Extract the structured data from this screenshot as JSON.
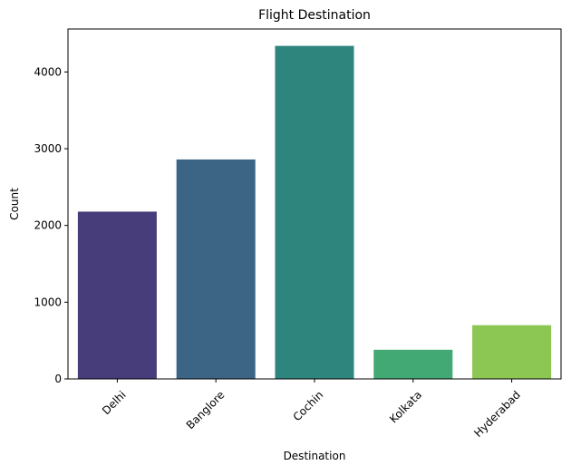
{
  "chart_data": {
    "type": "bar",
    "title": "Flight Destination",
    "xlabel": "Destination",
    "ylabel": "Count",
    "categories": [
      "Delhi",
      "Banglore",
      "Cochin",
      "Kolkata",
      "Hyderabad"
    ],
    "values": [
      2180,
      2860,
      4340,
      380,
      700
    ],
    "ylim": [
      0,
      4560
    ],
    "yticks": [
      0,
      1000,
      2000,
      3000,
      4000
    ],
    "ytick_labels": [
      "0",
      "1000",
      "2000",
      "3000",
      "4000"
    ],
    "xtick_rotation_deg": 45,
    "grid": false,
    "legend": "none",
    "colors": [
      "#483d7b",
      "#3c6585",
      "#2e857e",
      "#42a874",
      "#8cc653"
    ]
  }
}
